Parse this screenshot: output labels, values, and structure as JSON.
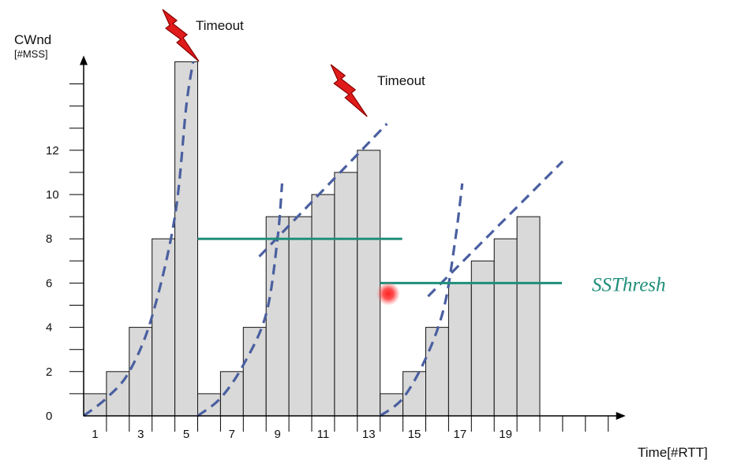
{
  "chart_data": {
    "type": "bar",
    "ylabel": "CWnd",
    "ylabel_unit": "[#MSS]",
    "xlabel": "Time[#RTT]",
    "x": [
      1,
      2,
      3,
      4,
      5,
      6,
      7,
      8,
      9,
      10,
      11,
      12,
      13,
      14,
      15,
      16,
      17,
      18,
      19,
      20
    ],
    "values": [
      1,
      2,
      4,
      8,
      16,
      1,
      2,
      4,
      9,
      9,
      10,
      11,
      12,
      1,
      2,
      4,
      6,
      7,
      8,
      9
    ],
    "x_tick_labels": [
      "1",
      "3",
      "5",
      "7",
      "9",
      "11",
      "13",
      "15",
      "17",
      "19"
    ],
    "x_tick_values": [
      1,
      3,
      5,
      7,
      9,
      11,
      13,
      15,
      17,
      19
    ],
    "y_tick_labels": [
      "0",
      "2",
      "4",
      "6",
      "8",
      "10",
      "12"
    ],
    "y_tick_values": [
      0,
      2,
      4,
      6,
      8,
      10,
      12
    ],
    "ylim": [
      0,
      15.5
    ],
    "xlim": [
      0.5,
      23.5
    ],
    "bar_color": "#d9d9d9",
    "ssthresh": {
      "label": "SSThresh",
      "color": "#1f8f7a",
      "segments": [
        {
          "x_start": 5.5,
          "x_end": 13.5,
          "value": 8
        },
        {
          "x_start": 13.5,
          "x_end": 20.5,
          "value": 6
        }
      ]
    },
    "timeouts": [
      {
        "label": "Timeout",
        "x": 5
      },
      {
        "label": "Timeout",
        "x": 13
      }
    ],
    "trend_color": "#4a5fa0",
    "trend_lines": [
      {
        "kind": "curve",
        "points": [
          [
            0.5,
            0
          ],
          [
            1.5,
            0.8
          ],
          [
            2.5,
            2
          ],
          [
            3.5,
            4.5
          ],
          [
            4.5,
            9
          ],
          [
            5,
            14
          ],
          [
            5.3,
            16
          ]
        ]
      },
      {
        "kind": "curve",
        "points": [
          [
            5.5,
            0
          ],
          [
            6.5,
            0.8
          ],
          [
            7.5,
            2.3
          ],
          [
            8.5,
            4.6
          ],
          [
            9,
            8
          ],
          [
            9.2,
            10.5
          ]
        ]
      },
      {
        "kind": "line",
        "points": [
          [
            8.2,
            7.2
          ],
          [
            13.8,
            13.2
          ]
        ]
      },
      {
        "kind": "curve",
        "points": [
          [
            13.5,
            0
          ],
          [
            14.5,
            0.8
          ],
          [
            15.5,
            2.6
          ],
          [
            16.3,
            4.9
          ],
          [
            16.8,
            8
          ],
          [
            17.1,
            10.5
          ]
        ]
      },
      {
        "kind": "line",
        "points": [
          [
            15.6,
            5.4
          ],
          [
            21.5,
            11.5
          ]
        ]
      }
    ]
  }
}
